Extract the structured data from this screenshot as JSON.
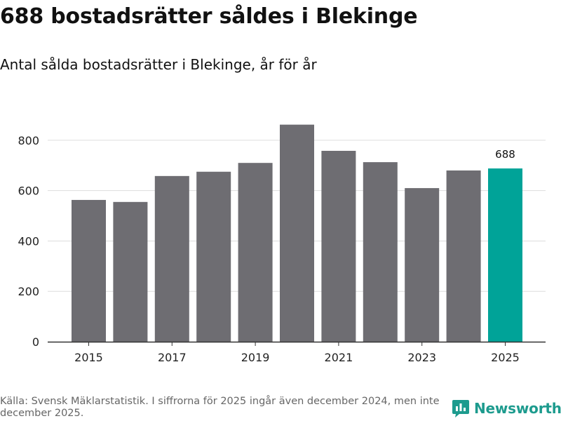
{
  "title": "688 bostadsrätter såldes i Blekinge",
  "subtitle": "Antal sålda bostadsrätter i Blekinge, år för år",
  "source": "Källa: Svensk Mäklarstatistik. I siffrorna för 2025 ingår även december 2024, men inte december 2025.",
  "brand": {
    "name": "Newsworthy",
    "icon": "newsworthy-logo-icon"
  },
  "colors": {
    "bar": "#6e6d72",
    "highlight": "#00a398",
    "grid": "#dddddd",
    "axis": "#333333"
  },
  "chart_data": {
    "type": "bar",
    "categories": [
      "2015",
      "2016",
      "2017",
      "2018",
      "2019",
      "2020",
      "2021",
      "2022",
      "2023",
      "2024",
      "2025"
    ],
    "values": [
      563,
      555,
      658,
      675,
      710,
      862,
      758,
      713,
      610,
      680,
      688
    ],
    "highlight_index": 10,
    "data_labels": [
      {
        "index": 10,
        "text": "688"
      }
    ],
    "x_tick_labels": [
      "2015",
      "2017",
      "2019",
      "2021",
      "2023",
      "2025"
    ],
    "y_ticks": [
      0,
      200,
      400,
      600,
      800
    ],
    "ylim": [
      0,
      900
    ],
    "xlabel": "",
    "ylabel": "",
    "grid": true,
    "legend": "none"
  }
}
